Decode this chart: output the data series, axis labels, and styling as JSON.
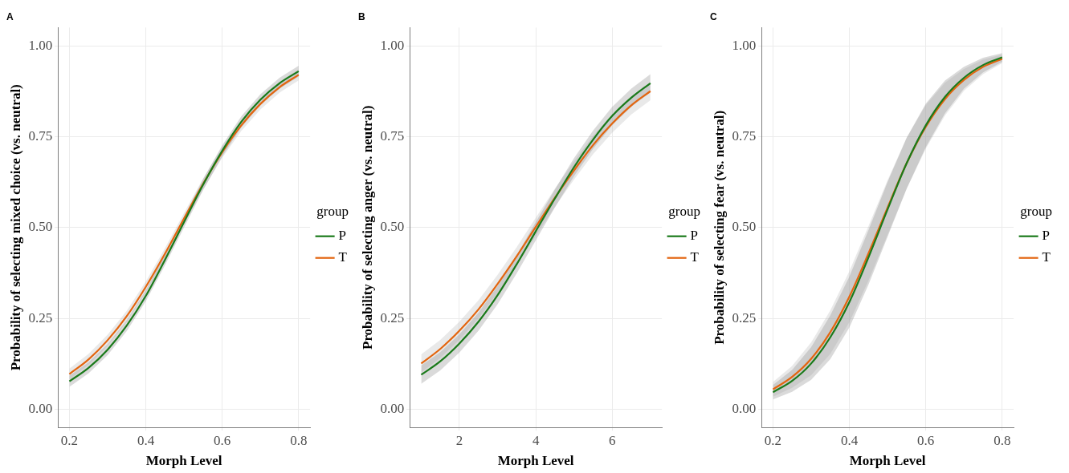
{
  "chart_data": [
    {
      "type": "line",
      "title": "A",
      "xlabel": "Morph Level",
      "ylabel": "Probability of selecting mixed choice (vs. neutral)",
      "legend_title": "group",
      "legend": "right",
      "grid": true,
      "marker": "none",
      "line_style": "solid",
      "xlim": [
        0.17,
        0.83
      ],
      "xticks": [
        0.2,
        0.4,
        0.6,
        0.8
      ],
      "ylim": [
        -0.05,
        1.05
      ],
      "yticks": [
        {
          "value": 0,
          "label": "0.00"
        },
        {
          "value": 0.25,
          "label": "0.25"
        },
        {
          "value": 0.5,
          "label": "0.50"
        },
        {
          "value": 0.75,
          "label": "0.75"
        },
        {
          "value": 1,
          "label": "1.00"
        }
      ],
      "x": [
        0.2,
        0.25,
        0.3,
        0.35,
        0.4,
        0.45,
        0.5,
        0.55,
        0.6,
        0.65,
        0.7,
        0.75,
        0.8
      ],
      "series": [
        {
          "name": "P",
          "color": "#1a7a1a",
          "values": [
            0.077,
            0.114,
            0.164,
            0.23,
            0.312,
            0.411,
            0.515,
            0.618,
            0.711,
            0.791,
            0.852,
            0.897,
            0.93
          ],
          "lower": [
            0.062,
            0.099,
            0.149,
            0.215,
            0.297,
            0.396,
            0.5,
            0.603,
            0.696,
            0.776,
            0.837,
            0.882,
            0.915
          ],
          "upper": [
            0.092,
            0.129,
            0.179,
            0.245,
            0.327,
            0.426,
            0.53,
            0.633,
            0.726,
            0.806,
            0.867,
            0.912,
            0.945
          ]
        },
        {
          "name": "T",
          "color": "#e3650f",
          "values": [
            0.097,
            0.137,
            0.19,
            0.256,
            0.337,
            0.428,
            0.525,
            0.62,
            0.707,
            0.781,
            0.84,
            0.886,
            0.92
          ],
          "lower": [
            0.082,
            0.122,
            0.175,
            0.241,
            0.322,
            0.413,
            0.51,
            0.605,
            0.692,
            0.766,
            0.825,
            0.871,
            0.905
          ],
          "upper": [
            0.112,
            0.152,
            0.205,
            0.271,
            0.352,
            0.443,
            0.54,
            0.635,
            0.722,
            0.796,
            0.855,
            0.901,
            0.935
          ]
        }
      ]
    },
    {
      "type": "line",
      "title": "B",
      "xlabel": "Morph Level",
      "ylabel": "Probability of selecting anger (vs. neutral)",
      "legend_title": "group",
      "legend": "right",
      "grid": true,
      "marker": "none",
      "line_style": "solid",
      "xlim": [
        0.7,
        7.3
      ],
      "xticks": [
        2,
        4,
        6
      ],
      "ylim": [
        -0.05,
        1.05
      ],
      "yticks": [
        {
          "value": 0,
          "label": "0.00"
        },
        {
          "value": 0.25,
          "label": "0.25"
        },
        {
          "value": 0.5,
          "label": "0.50"
        },
        {
          "value": 0.75,
          "label": "0.75"
        },
        {
          "value": 1,
          "label": "1.00"
        }
      ],
      "x": [
        1,
        1.5,
        2,
        2.5,
        3,
        3.5,
        4,
        4.5,
        5,
        5.5,
        6,
        6.5,
        7
      ],
      "series": [
        {
          "name": "P",
          "color": "#1a7a1a",
          "values": [
            0.095,
            0.132,
            0.181,
            0.241,
            0.314,
            0.399,
            0.49,
            0.58,
            0.666,
            0.742,
            0.807,
            0.857,
            0.897
          ],
          "lower": [
            0.07,
            0.107,
            0.156,
            0.216,
            0.289,
            0.374,
            0.465,
            0.555,
            0.641,
            0.717,
            0.782,
            0.832,
            0.872
          ],
          "upper": [
            0.12,
            0.157,
            0.206,
            0.266,
            0.339,
            0.424,
            0.515,
            0.605,
            0.691,
            0.767,
            0.832,
            0.882,
            0.922
          ]
        },
        {
          "name": "T",
          "color": "#e3650f",
          "values": [
            0.126,
            0.166,
            0.216,
            0.275,
            0.345,
            0.421,
            0.502,
            0.582,
            0.657,
            0.727,
            0.786,
            0.836,
            0.875
          ],
          "lower": [
            0.101,
            0.141,
            0.191,
            0.25,
            0.32,
            0.396,
            0.477,
            0.557,
            0.632,
            0.702,
            0.761,
            0.811,
            0.85
          ],
          "upper": [
            0.151,
            0.191,
            0.241,
            0.3,
            0.37,
            0.446,
            0.527,
            0.607,
            0.682,
            0.752,
            0.811,
            0.861,
            0.9
          ]
        }
      ]
    },
    {
      "type": "line",
      "title": "C",
      "xlabel": "Morph Level",
      "ylabel": "Probability of selecting fear (vs. neutral)",
      "legend_title": "group",
      "legend": "right",
      "grid": true,
      "marker": "none",
      "line_style": "solid",
      "xlim": [
        0.17,
        0.83
      ],
      "xticks": [
        0.2,
        0.4,
        0.6,
        0.8
      ],
      "ylim": [
        -0.05,
        1.05
      ],
      "yticks": [
        {
          "value": 0,
          "label": "0.00"
        },
        {
          "value": 0.25,
          "label": "0.25"
        },
        {
          "value": 0.5,
          "label": "0.50"
        },
        {
          "value": 0.75,
          "label": "0.75"
        },
        {
          "value": 1,
          "label": "1.00"
        }
      ],
      "x": [
        0.2,
        0.25,
        0.3,
        0.35,
        0.4,
        0.45,
        0.5,
        0.55,
        0.6,
        0.65,
        0.7,
        0.75,
        0.8
      ],
      "series": [
        {
          "name": "P",
          "color": "#1a7a1a",
          "values": [
            0.047,
            0.078,
            0.126,
            0.198,
            0.295,
            0.418,
            0.55,
            0.677,
            0.781,
            0.859,
            0.912,
            0.947,
            0.968
          ],
          "lower": [
            0.027,
            0.048,
            0.081,
            0.138,
            0.225,
            0.343,
            0.475,
            0.607,
            0.721,
            0.814,
            0.882,
            0.927,
            0.956
          ],
          "upper": [
            0.067,
            0.108,
            0.171,
            0.258,
            0.365,
            0.493,
            0.625,
            0.747,
            0.841,
            0.904,
            0.942,
            0.967,
            0.98
          ]
        },
        {
          "name": "T",
          "color": "#e3650f",
          "values": [
            0.055,
            0.089,
            0.139,
            0.212,
            0.31,
            0.429,
            0.555,
            0.677,
            0.777,
            0.853,
            0.906,
            0.942,
            0.964
          ],
          "lower": [
            0.035,
            0.059,
            0.094,
            0.152,
            0.24,
            0.354,
            0.48,
            0.607,
            0.717,
            0.808,
            0.876,
            0.922,
            0.952
          ],
          "upper": [
            0.075,
            0.119,
            0.184,
            0.272,
            0.38,
            0.504,
            0.63,
            0.747,
            0.837,
            0.898,
            0.936,
            0.962,
            0.976
          ]
        }
      ]
    }
  ]
}
